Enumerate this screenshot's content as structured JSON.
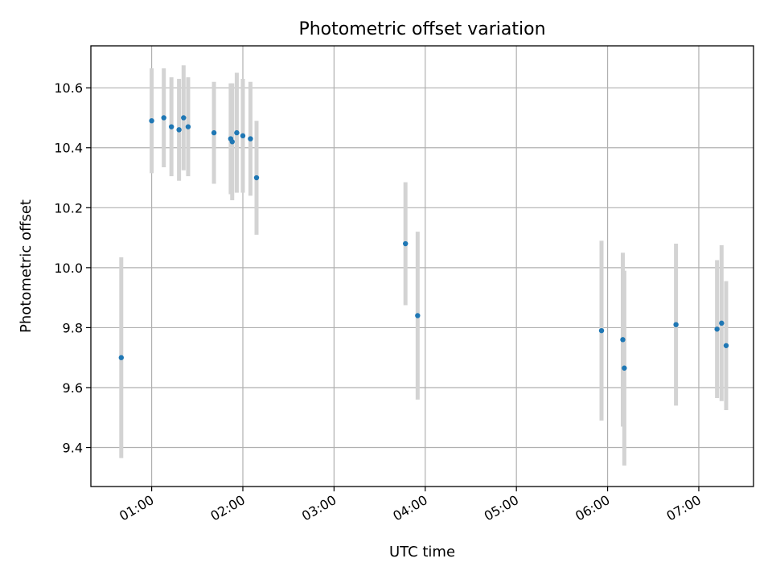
{
  "chart_data": {
    "type": "scatter",
    "title": "Photometric offset variation",
    "xlabel": "UTC time",
    "ylabel": "Photometric offset",
    "xlim": [
      "00:20",
      "07:36"
    ],
    "ylim": [
      9.27,
      10.74
    ],
    "x_ticks": [
      "01:00",
      "02:00",
      "03:00",
      "04:00",
      "05:00",
      "06:00",
      "07:00"
    ],
    "y_ticks": [
      "9.4",
      "9.6",
      "9.8",
      "10.0",
      "10.2",
      "10.4",
      "10.6"
    ],
    "grid": true,
    "point_color": "#1f77b4",
    "errorbar_color": "#d3d3d3",
    "points": [
      {
        "x": "00:40",
        "y": 9.7,
        "err": 0.335
      },
      {
        "x": "01:00",
        "y": 10.49,
        "err": 0.175
      },
      {
        "x": "01:08",
        "y": 10.5,
        "err": 0.165
      },
      {
        "x": "01:13",
        "y": 10.47,
        "err": 0.165
      },
      {
        "x": "01:18",
        "y": 10.46,
        "err": 0.17
      },
      {
        "x": "01:21",
        "y": 10.5,
        "err": 0.175
      },
      {
        "x": "01:24",
        "y": 10.47,
        "err": 0.165
      },
      {
        "x": "01:41",
        "y": 10.45,
        "err": 0.17
      },
      {
        "x": "01:52",
        "y": 10.43,
        "err": 0.185
      },
      {
        "x": "01:53",
        "y": 10.42,
        "err": 0.195
      },
      {
        "x": "01:56",
        "y": 10.45,
        "err": 0.2
      },
      {
        "x": "02:00",
        "y": 10.44,
        "err": 0.19
      },
      {
        "x": "02:05",
        "y": 10.43,
        "err": 0.19
      },
      {
        "x": "02:09",
        "y": 10.3,
        "err": 0.19
      },
      {
        "x": "03:47",
        "y": 10.08,
        "err": 0.205
      },
      {
        "x": "03:55",
        "y": 9.84,
        "err": 0.28
      },
      {
        "x": "05:56",
        "y": 9.79,
        "err": 0.3
      },
      {
        "x": "06:10",
        "y": 9.76,
        "err": 0.29
      },
      {
        "x": "06:11",
        "y": 9.665,
        "err": 0.325
      },
      {
        "x": "06:45",
        "y": 9.81,
        "err": 0.27
      },
      {
        "x": "07:12",
        "y": 9.795,
        "err": 0.23
      },
      {
        "x": "07:15",
        "y": 9.815,
        "err": 0.26
      },
      {
        "x": "07:18",
        "y": 9.74,
        "err": 0.215
      }
    ]
  }
}
